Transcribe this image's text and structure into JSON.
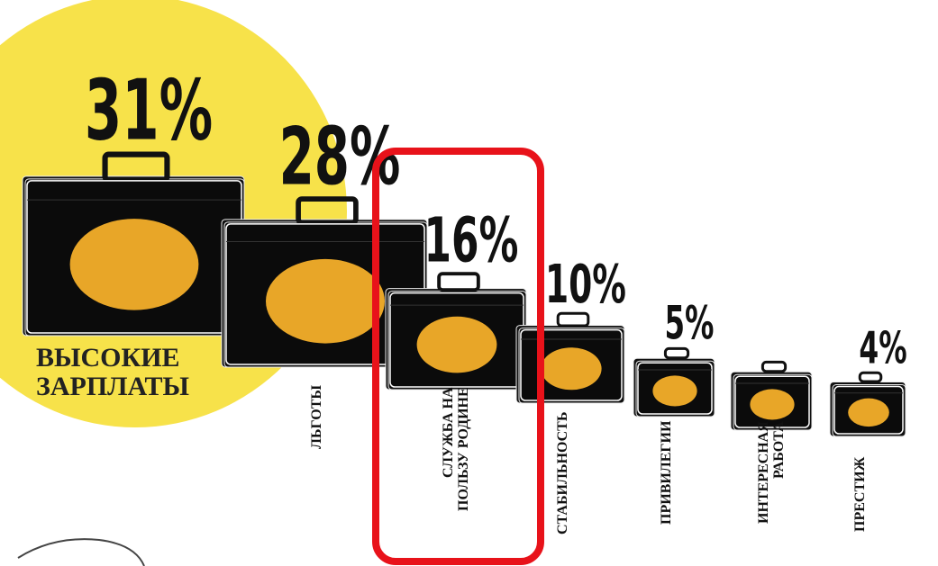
{
  "chart_data": {
    "type": "pictorial",
    "categories": [
      "ВЫСОКИЕ ЗАРПЛАТЫ",
      "ЛЬГОТЫ",
      "СЛУЖБА НА ПОЛЬЗУ РОДИНЕ",
      "СТАБИЛЬНОСТЬ",
      "ПРИВИЛЕГИИ",
      "ИНТЕРЕСНАЯ РАБОТА",
      "ПРЕСТИЖ"
    ],
    "values": [
      31,
      28,
      16,
      10,
      5,
      5,
      4
    ],
    "value_labels": [
      "31%",
      "28%",
      "16%",
      "10%",
      "5%",
      null,
      "4%"
    ],
    "color": "#e8a628"
  }
}
